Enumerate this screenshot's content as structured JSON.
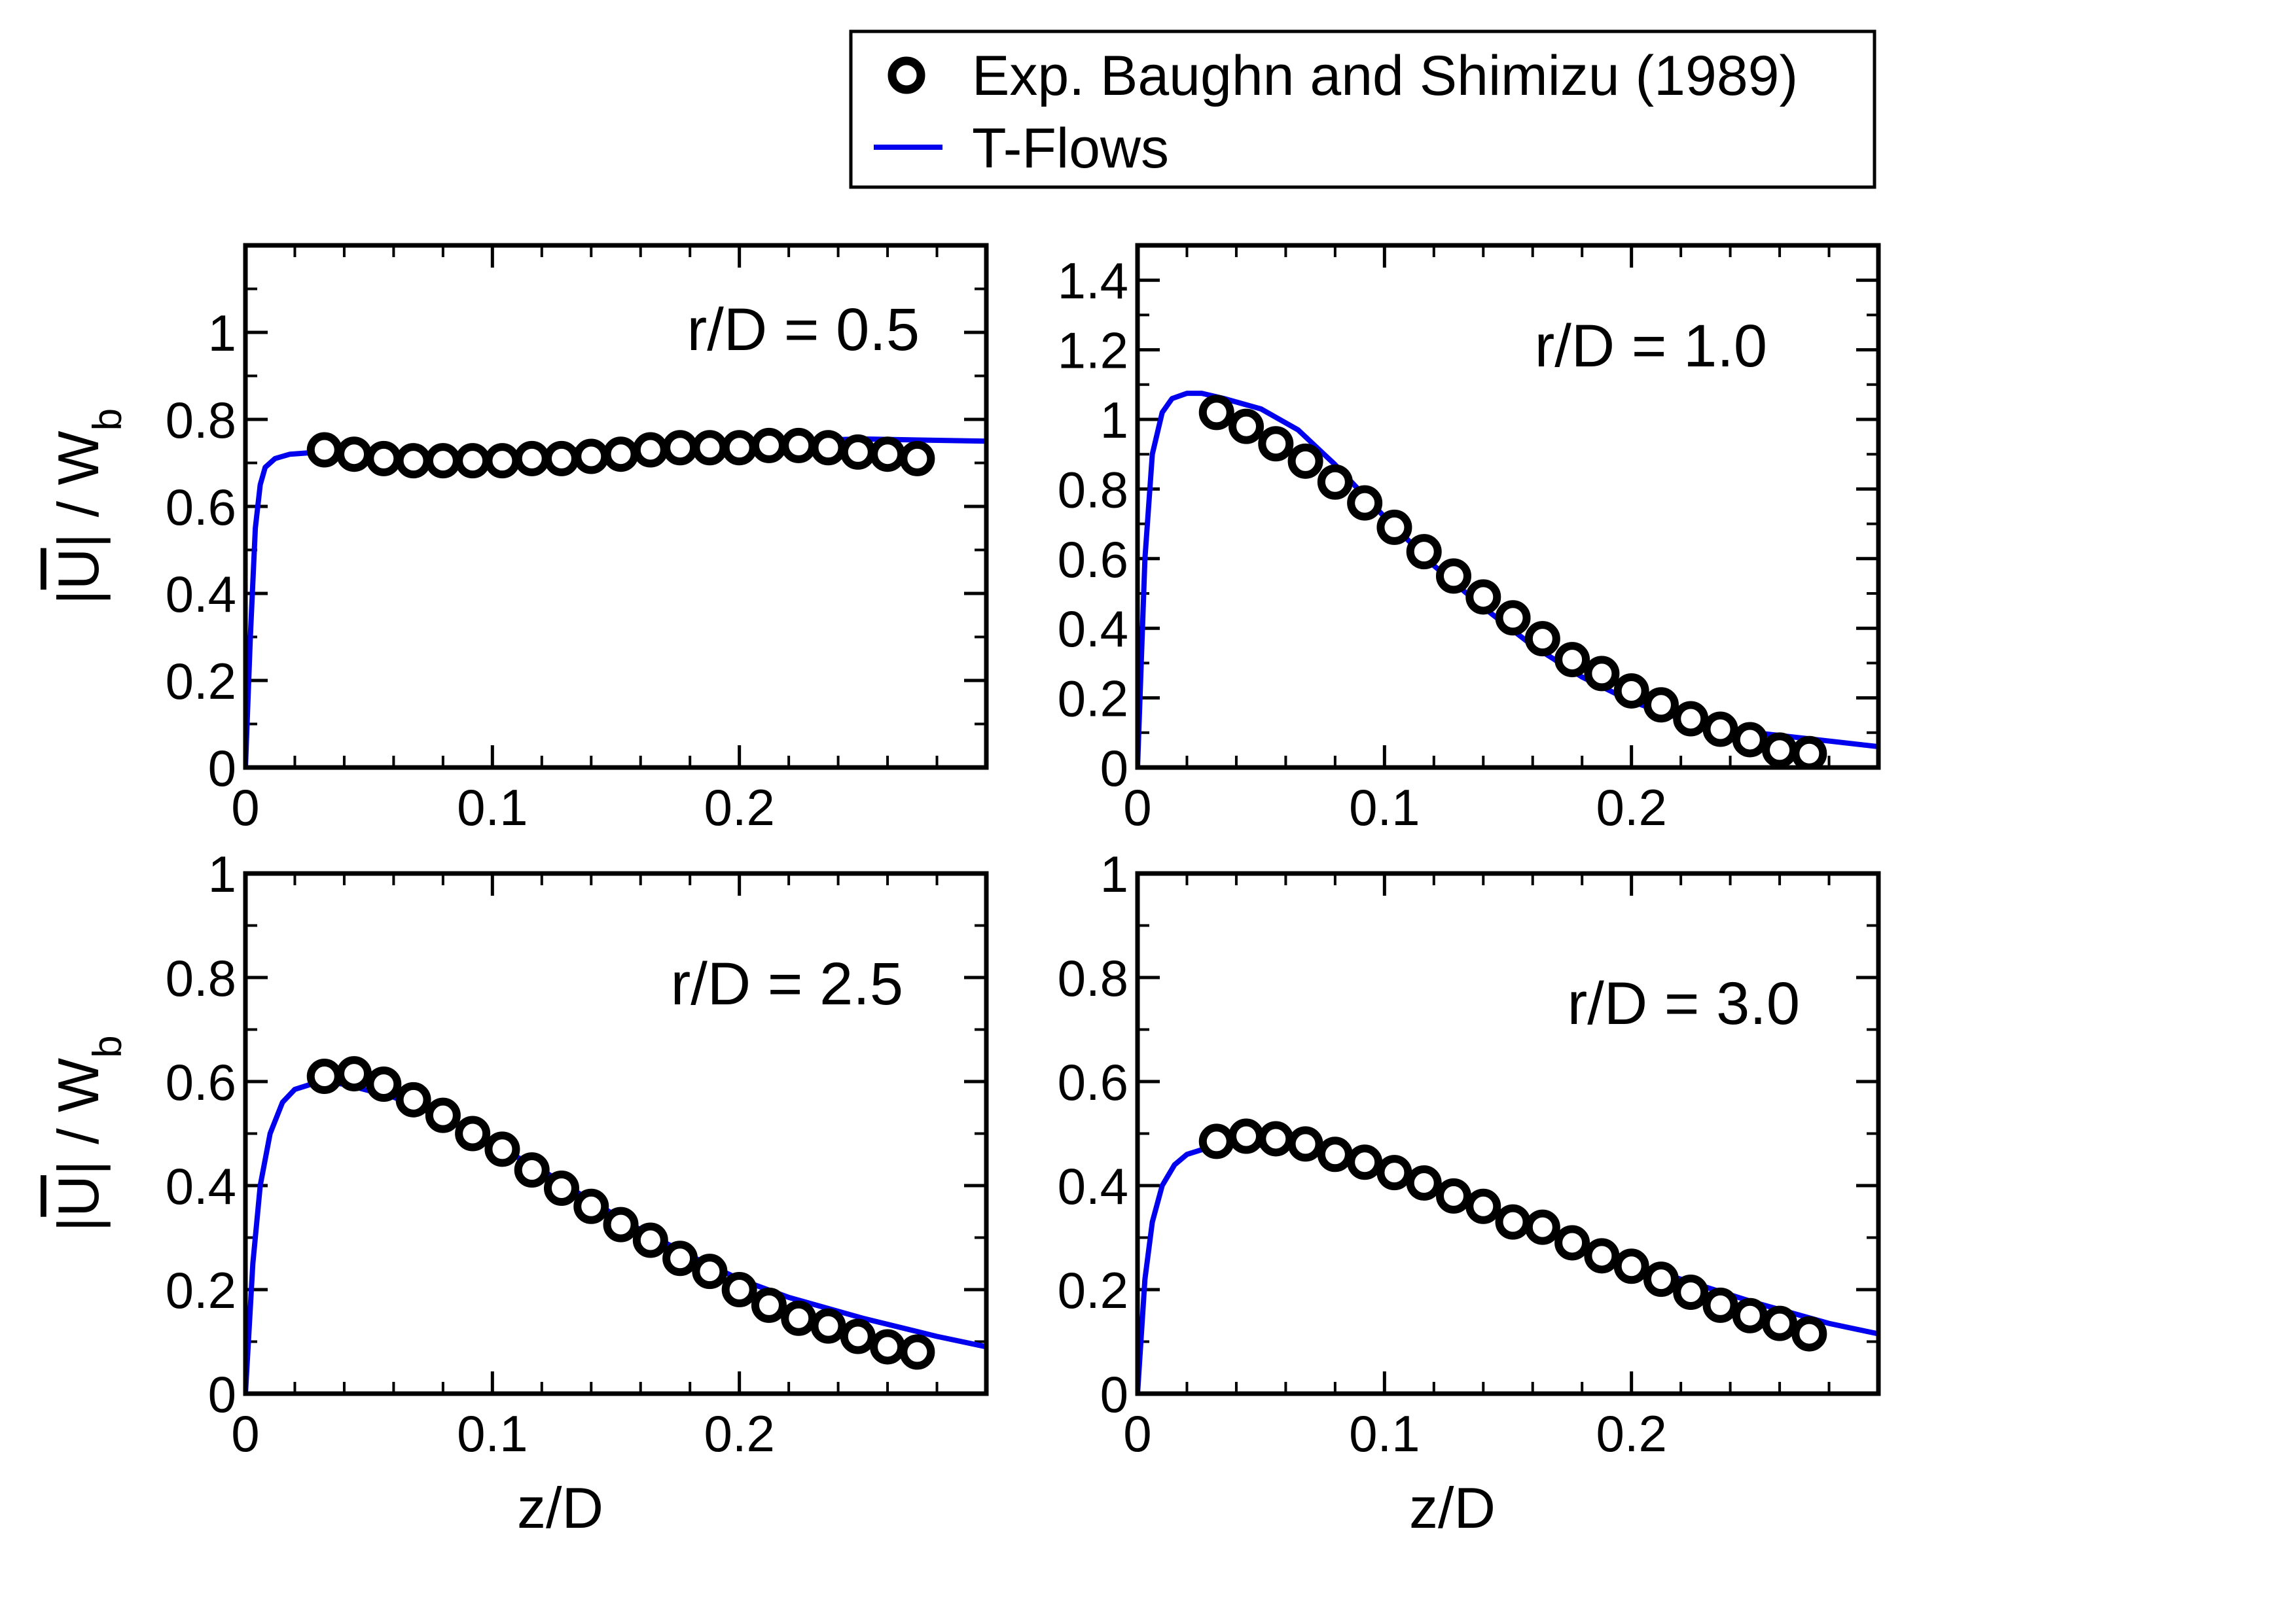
{
  "legend": {
    "items": [
      {
        "label": "Exp. Baughn and Shimizu (1989)",
        "marker": "circle"
      },
      {
        "label": "T-Flows",
        "marker": "line"
      }
    ]
  },
  "colors": {
    "axis": "#000000",
    "line": "#0000ee",
    "marker_stroke": "#000000",
    "marker_fill": "#ffffff"
  },
  "axes": {
    "xlabel": "z/D",
    "ylabel": "|U| / Wb",
    "ylabel_parts": {
      "pre": "|",
      "vec": "U",
      "mid": "| / W",
      "sub": "b"
    }
  },
  "chart_data": [
    {
      "type": "line",
      "panel_label": "r/D = 0.5",
      "xlim": [
        0,
        0.3
      ],
      "ylim": [
        0,
        1.2
      ],
      "xticks": [
        0,
        0.1,
        0.2
      ],
      "xtick_labels": [
        "0",
        "0.1",
        "0.2"
      ],
      "yticks": [
        0,
        0.2,
        0.4,
        0.6,
        0.8,
        1
      ],
      "ytick_labels": [
        "0",
        "0.2",
        "0.4",
        "0.6",
        "0.8",
        "1"
      ],
      "series": [
        {
          "name": "Exp. Baughn and Shimizu (1989)",
          "kind": "scatter",
          "x": [
            0.032,
            0.044,
            0.056,
            0.068,
            0.08,
            0.092,
            0.104,
            0.116,
            0.128,
            0.14,
            0.152,
            0.164,
            0.176,
            0.188,
            0.2,
            0.212,
            0.224,
            0.236,
            0.248,
            0.26,
            0.272
          ],
          "y": [
            0.73,
            0.72,
            0.71,
            0.705,
            0.705,
            0.705,
            0.705,
            0.71,
            0.71,
            0.715,
            0.72,
            0.73,
            0.735,
            0.735,
            0.735,
            0.74,
            0.74,
            0.735,
            0.725,
            0.72,
            0.71
          ]
        },
        {
          "name": "T-Flows",
          "kind": "line",
          "x": [
            0,
            0.002,
            0.004,
            0.006,
            0.008,
            0.012,
            0.018,
            0.03,
            0.05,
            0.08,
            0.1,
            0.15,
            0.2,
            0.25,
            0.3
          ],
          "y": [
            0,
            0.3,
            0.55,
            0.65,
            0.69,
            0.71,
            0.72,
            0.725,
            0.72,
            0.715,
            0.72,
            0.735,
            0.748,
            0.755,
            0.75
          ]
        }
      ]
    },
    {
      "type": "line",
      "panel_label": "r/D = 1.0",
      "xlim": [
        0,
        0.3
      ],
      "ylim": [
        0,
        1.5
      ],
      "xticks": [
        0,
        0.1,
        0.2
      ],
      "xtick_labels": [
        "0",
        "0.1",
        "0.2"
      ],
      "yticks": [
        0,
        0.2,
        0.4,
        0.6,
        0.8,
        1,
        1.2,
        1.4
      ],
      "ytick_labels": [
        "0",
        "0.2",
        "0.4",
        "0.6",
        "0.8",
        "1",
        "1.2",
        "1.4"
      ],
      "series": [
        {
          "name": "Exp. Baughn and Shimizu (1989)",
          "kind": "scatter",
          "x": [
            0.032,
            0.044,
            0.056,
            0.068,
            0.08,
            0.092,
            0.104,
            0.116,
            0.128,
            0.14,
            0.152,
            0.164,
            0.176,
            0.188,
            0.2,
            0.212,
            0.224,
            0.236,
            0.248,
            0.26,
            0.272
          ],
          "y": [
            1.02,
            0.98,
            0.93,
            0.88,
            0.82,
            0.76,
            0.69,
            0.62,
            0.55,
            0.49,
            0.43,
            0.37,
            0.31,
            0.27,
            0.22,
            0.18,
            0.14,
            0.11,
            0.08,
            0.05,
            0.04
          ]
        },
        {
          "name": "T-Flows",
          "kind": "line",
          "x": [
            0,
            0.003,
            0.006,
            0.01,
            0.014,
            0.02,
            0.026,
            0.035,
            0.05,
            0.065,
            0.08,
            0.1,
            0.12,
            0.14,
            0.16,
            0.18,
            0.2,
            0.22,
            0.25,
            0.3
          ],
          "y": [
            0,
            0.6,
            0.9,
            1.02,
            1.06,
            1.075,
            1.075,
            1.06,
            1.03,
            0.97,
            0.87,
            0.72,
            0.58,
            0.46,
            0.35,
            0.26,
            0.19,
            0.14,
            0.1,
            0.06
          ]
        }
      ]
    },
    {
      "type": "line",
      "panel_label": "r/D = 2.5",
      "xlim": [
        0,
        0.3
      ],
      "ylim": [
        0,
        1.0
      ],
      "xticks": [
        0,
        0.1,
        0.2
      ],
      "xtick_labels": [
        "0",
        "0.1",
        "0.2"
      ],
      "yticks": [
        0,
        0.2,
        0.4,
        0.6,
        0.8,
        1
      ],
      "ytick_labels": [
        "0",
        "0.2",
        "0.4",
        "0.6",
        "0.8",
        "1"
      ],
      "series": [
        {
          "name": "Exp. Baughn and Shimizu (1989)",
          "kind": "scatter",
          "x": [
            0.032,
            0.044,
            0.056,
            0.068,
            0.08,
            0.092,
            0.104,
            0.116,
            0.128,
            0.14,
            0.152,
            0.164,
            0.176,
            0.188,
            0.2,
            0.212,
            0.224,
            0.236,
            0.248,
            0.26,
            0.272
          ],
          "y": [
            0.61,
            0.615,
            0.595,
            0.565,
            0.535,
            0.5,
            0.47,
            0.43,
            0.395,
            0.36,
            0.325,
            0.295,
            0.26,
            0.235,
            0.2,
            0.17,
            0.145,
            0.13,
            0.11,
            0.09,
            0.08
          ]
        },
        {
          "name": "T-Flows",
          "kind": "line",
          "x": [
            0,
            0.003,
            0.006,
            0.01,
            0.015,
            0.02,
            0.03,
            0.04,
            0.06,
            0.08,
            0.1,
            0.12,
            0.14,
            0.16,
            0.18,
            0.2,
            0.22,
            0.25,
            0.28,
            0.3
          ],
          "y": [
            0,
            0.25,
            0.4,
            0.5,
            0.56,
            0.585,
            0.6,
            0.595,
            0.57,
            0.53,
            0.48,
            0.43,
            0.37,
            0.315,
            0.265,
            0.22,
            0.185,
            0.145,
            0.11,
            0.09
          ]
        }
      ]
    },
    {
      "type": "line",
      "panel_label": "r/D = 3.0",
      "xlim": [
        0,
        0.3
      ],
      "ylim": [
        0,
        1.0
      ],
      "xticks": [
        0,
        0.1,
        0.2
      ],
      "xtick_labels": [
        "0",
        "0.1",
        "0.2"
      ],
      "yticks": [
        0,
        0.2,
        0.4,
        0.6,
        0.8,
        1
      ],
      "ytick_labels": [
        "0",
        "0.2",
        "0.4",
        "0.6",
        "0.8",
        "1"
      ],
      "series": [
        {
          "name": "Exp. Baughn and Shimizu (1989)",
          "kind": "scatter",
          "x": [
            0.032,
            0.044,
            0.056,
            0.068,
            0.08,
            0.092,
            0.104,
            0.116,
            0.128,
            0.14,
            0.152,
            0.164,
            0.176,
            0.188,
            0.2,
            0.212,
            0.224,
            0.236,
            0.248,
            0.26,
            0.272
          ],
          "y": [
            0.485,
            0.495,
            0.49,
            0.48,
            0.46,
            0.445,
            0.425,
            0.405,
            0.38,
            0.36,
            0.33,
            0.32,
            0.29,
            0.265,
            0.245,
            0.22,
            0.195,
            0.17,
            0.15,
            0.135,
            0.115
          ]
        },
        {
          "name": "T-Flows",
          "kind": "line",
          "x": [
            0,
            0.003,
            0.006,
            0.01,
            0.015,
            0.02,
            0.03,
            0.04,
            0.06,
            0.08,
            0.1,
            0.12,
            0.14,
            0.16,
            0.18,
            0.2,
            0.22,
            0.25,
            0.28,
            0.3
          ],
          "y": [
            0,
            0.22,
            0.33,
            0.4,
            0.44,
            0.46,
            0.475,
            0.48,
            0.475,
            0.455,
            0.425,
            0.39,
            0.355,
            0.32,
            0.285,
            0.25,
            0.22,
            0.175,
            0.135,
            0.115
          ]
        }
      ]
    }
  ]
}
